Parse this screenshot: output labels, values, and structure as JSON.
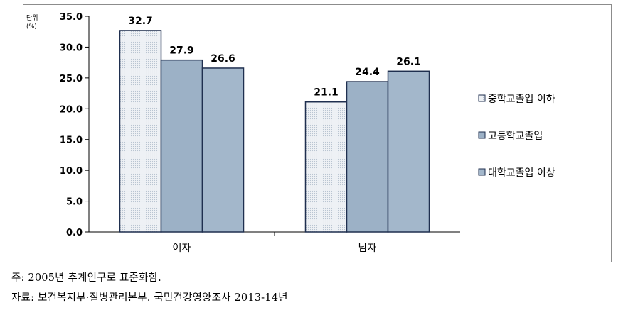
{
  "chart_data": {
    "type": "bar",
    "unit_label": "단위",
    "unit_sub": "(%)",
    "categories": [
      "여자",
      "남자"
    ],
    "series": [
      {
        "name": "중학교졸업 이하",
        "values": [
          32.7,
          21.1
        ],
        "color": "#e4e8ee",
        "pattern": "dots"
      },
      {
        "name": "고등학교졸업",
        "values": [
          27.9,
          24.4
        ],
        "color": "#9cb1c6",
        "pattern": "none"
      },
      {
        "name": "대학교졸업 이상",
        "values": [
          26.6,
          26.1
        ],
        "color": "#a3b7cb",
        "pattern": "none"
      }
    ],
    "y_ticks": [
      "0.0",
      "5.0",
      "10.0",
      "15.0",
      "20.0",
      "25.0",
      "30.0",
      "35.0"
    ],
    "ylim": [
      0,
      35
    ],
    "data_labels": true,
    "grid": false,
    "legend_position": "right"
  },
  "notes": {
    "line1": "주: 2005년 추계인구로 표준화함.",
    "line2": "자료: 보건복지부·질병관리본부. 국민건강영양조사 2013-14년"
  },
  "colors": {
    "bar_stroke": "#1f2f4f",
    "axis": "#000000",
    "frame": "#8c8c8c"
  }
}
